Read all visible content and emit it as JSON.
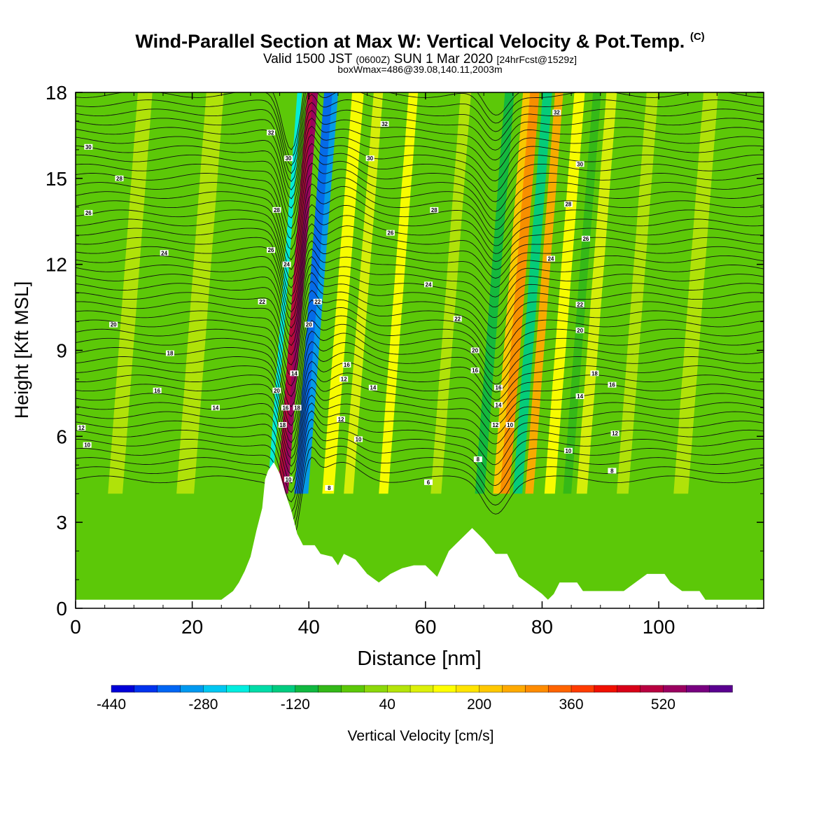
{
  "header": {
    "title_main": "Wind-Parallel Section at Max W: Vertical Velocity & Pot.Temp.",
    "title_copyright": "(C)",
    "subtitle_a": "Valid 1500 JST",
    "subtitle_z": "(0600Z)",
    "subtitle_b": "SUN 1 Mar 2020",
    "subtitle_fcst": "[24hrFcst@1529z]",
    "info_line": "boxWmax=486@39.08,140.11,2003m"
  },
  "chart_data": {
    "type": "heatmap",
    "title": "Wind-Parallel Section at Max W: Vertical Velocity & Pot.Temp.",
    "xlabel": "Distance [nm]",
    "ylabel": "Height [Kft MSL]",
    "xlim": [
      0,
      118
    ],
    "ylim": [
      0,
      18
    ],
    "x_ticks": [
      0,
      20,
      40,
      60,
      80,
      100
    ],
    "y_ticks": [
      0,
      3,
      6,
      9,
      12,
      15,
      18
    ],
    "colorbar": {
      "label": "Vertical Velocity [cm/s]",
      "tick_labels": [
        "-440",
        "-280",
        "-120",
        "40",
        "200",
        "360",
        "520"
      ],
      "colors": [
        "#0000d8",
        "#0033ee",
        "#0066f4",
        "#0099f0",
        "#00c7f2",
        "#00eee0",
        "#00dca8",
        "#00cc80",
        "#10b840",
        "#33b818",
        "#5cc808",
        "#8cd80a",
        "#b4e40a",
        "#dcf00a",
        "#ffff00",
        "#ffe400",
        "#ffc800",
        "#ffaa00",
        "#ff8c00",
        "#ff6400",
        "#ff3c00",
        "#f01000",
        "#d80018",
        "#b80040",
        "#9a0060",
        "#780080",
        "#5a0090"
      ]
    },
    "terrain_kft": [
      [
        0,
        0.3
      ],
      [
        10,
        0.3
      ],
      [
        20,
        0.3
      ],
      [
        25,
        0.3
      ],
      [
        27,
        0.6
      ],
      [
        28,
        0.9
      ],
      [
        29,
        1.3
      ],
      [
        30,
        1.8
      ],
      [
        31,
        2.7
      ],
      [
        32,
        3.5
      ],
      [
        32.5,
        4.5
      ],
      [
        33,
        4.8
      ],
      [
        34,
        5.1
      ],
      [
        35,
        4.7
      ],
      [
        36,
        4.0
      ],
      [
        37,
        3.4
      ],
      [
        38,
        2.6
      ],
      [
        39,
        2.2
      ],
      [
        41,
        2.2
      ],
      [
        42,
        1.9
      ],
      [
        44,
        1.8
      ],
      [
        45,
        1.5
      ],
      [
        46,
        1.9
      ],
      [
        48,
        1.7
      ],
      [
        50,
        1.2
      ],
      [
        52,
        0.9
      ],
      [
        54,
        1.2
      ],
      [
        56,
        1.4
      ],
      [
        58,
        1.5
      ],
      [
        60,
        1.5
      ],
      [
        61,
        1.3
      ],
      [
        62,
        1.1
      ],
      [
        64,
        2.0
      ],
      [
        66,
        2.4
      ],
      [
        68,
        2.8
      ],
      [
        70,
        2.4
      ],
      [
        72,
        1.9
      ],
      [
        74,
        1.9
      ],
      [
        75,
        1.5
      ],
      [
        76,
        1.1
      ],
      [
        78,
        0.8
      ],
      [
        80,
        0.5
      ],
      [
        81,
        0.3
      ],
      [
        82,
        0.5
      ],
      [
        83,
        0.9
      ],
      [
        86,
        0.9
      ],
      [
        87,
        0.6
      ],
      [
        94,
        0.6
      ],
      [
        96,
        0.9
      ],
      [
        98,
        1.2
      ],
      [
        101,
        1.2
      ],
      [
        102,
        0.9
      ],
      [
        104,
        0.6
      ],
      [
        107,
        0.6
      ],
      [
        108,
        0.3
      ],
      [
        118,
        0.3
      ]
    ],
    "ww_bands": [
      {
        "x": 36.5,
        "width": 1.4,
        "value": 480
      },
      {
        "x": 37.2,
        "width": 0.9,
        "value": 540
      },
      {
        "x": 39.5,
        "width": 1.6,
        "value": -360
      },
      {
        "x": 40.6,
        "width": 1.0,
        "value": -300
      },
      {
        "x": 34.5,
        "width": 0.8,
        "value": -240
      },
      {
        "x": 44.5,
        "width": 2.0,
        "value": 120
      },
      {
        "x": 48.0,
        "width": 1.6,
        "value": 80
      },
      {
        "x": 54.0,
        "width": 1.6,
        "value": 150
      },
      {
        "x": 63.0,
        "width": 1.8,
        "value": 70
      },
      {
        "x": 70.5,
        "width": 1.6,
        "value": -120
      },
      {
        "x": 73.5,
        "width": 1.4,
        "value": 200
      },
      {
        "x": 74.8,
        "width": 1.6,
        "value": 280
      },
      {
        "x": 77.0,
        "width": 1.6,
        "value": -150
      },
      {
        "x": 79.0,
        "width": 1.4,
        "value": 240
      },
      {
        "x": 82.5,
        "width": 1.8,
        "value": 120
      },
      {
        "x": 85.5,
        "width": 1.4,
        "value": -80
      },
      {
        "x": 88.0,
        "width": 1.8,
        "value": 90
      },
      {
        "x": 95.0,
        "width": 2.0,
        "value": 60
      },
      {
        "x": 105.0,
        "width": 2.5,
        "value": 60
      },
      {
        "x": 20.0,
        "width": 3.0,
        "value": 50
      },
      {
        "x": 8.0,
        "width": 2.5,
        "value": 45
      }
    ],
    "contour_labels": [
      {
        "x": 2.2,
        "y": 16.1,
        "text": "30"
      },
      {
        "x": 7.5,
        "y": 15.0,
        "text": "28"
      },
      {
        "x": 2.2,
        "y": 13.8,
        "text": "26"
      },
      {
        "x": 15.2,
        "y": 12.4,
        "text": "24"
      },
      {
        "x": 6.5,
        "y": 9.9,
        "text": "20"
      },
      {
        "x": 16.2,
        "y": 8.9,
        "text": "18"
      },
      {
        "x": 14.0,
        "y": 7.6,
        "text": "16"
      },
      {
        "x": 24.0,
        "y": 7.0,
        "text": "14"
      },
      {
        "x": 1.0,
        "y": 6.3,
        "text": "12"
      },
      {
        "x": 2.0,
        "y": 5.7,
        "text": "10"
      },
      {
        "x": 33.5,
        "y": 16.6,
        "text": "32"
      },
      {
        "x": 36.5,
        "y": 15.7,
        "text": "30"
      },
      {
        "x": 34.5,
        "y": 13.9,
        "text": "28"
      },
      {
        "x": 33.5,
        "y": 12.5,
        "text": "26"
      },
      {
        "x": 36.2,
        "y": 12.0,
        "text": "24"
      },
      {
        "x": 32.0,
        "y": 10.7,
        "text": "22"
      },
      {
        "x": 41.5,
        "y": 10.7,
        "text": "22"
      },
      {
        "x": 40.0,
        "y": 9.9,
        "text": "20"
      },
      {
        "x": 37.5,
        "y": 8.2,
        "text": "14"
      },
      {
        "x": 34.5,
        "y": 7.6,
        "text": "20"
      },
      {
        "x": 36.0,
        "y": 7.0,
        "text": "16"
      },
      {
        "x": 38.0,
        "y": 7.0,
        "text": "18"
      },
      {
        "x": 35.5,
        "y": 6.4,
        "text": "18"
      },
      {
        "x": 36.5,
        "y": 4.5,
        "text": "10"
      },
      {
        "x": 53.0,
        "y": 16.9,
        "text": "32"
      },
      {
        "x": 50.5,
        "y": 15.7,
        "text": "30"
      },
      {
        "x": 61.5,
        "y": 13.9,
        "text": "28"
      },
      {
        "x": 54.0,
        "y": 13.1,
        "text": "26"
      },
      {
        "x": 60.5,
        "y": 11.3,
        "text": "24"
      },
      {
        "x": 65.5,
        "y": 10.1,
        "text": "22"
      },
      {
        "x": 46.5,
        "y": 8.5,
        "text": "16"
      },
      {
        "x": 46.0,
        "y": 8.0,
        "text": "12"
      },
      {
        "x": 51.0,
        "y": 7.7,
        "text": "14"
      },
      {
        "x": 45.5,
        "y": 6.6,
        "text": "12"
      },
      {
        "x": 48.5,
        "y": 5.9,
        "text": "10"
      },
      {
        "x": 43.5,
        "y": 4.2,
        "text": "8"
      },
      {
        "x": 60.5,
        "y": 4.4,
        "text": "6"
      },
      {
        "x": 82.5,
        "y": 17.3,
        "text": "32"
      },
      {
        "x": 86.5,
        "y": 15.5,
        "text": "30"
      },
      {
        "x": 84.5,
        "y": 14.1,
        "text": "28"
      },
      {
        "x": 87.5,
        "y": 12.9,
        "text": "26"
      },
      {
        "x": 81.5,
        "y": 12.2,
        "text": "24"
      },
      {
        "x": 86.5,
        "y": 10.6,
        "text": "22"
      },
      {
        "x": 86.5,
        "y": 9.7,
        "text": "20"
      },
      {
        "x": 68.5,
        "y": 9.0,
        "text": "20"
      },
      {
        "x": 68.5,
        "y": 8.3,
        "text": "16"
      },
      {
        "x": 72.5,
        "y": 7.7,
        "text": "16"
      },
      {
        "x": 89.0,
        "y": 8.2,
        "text": "18"
      },
      {
        "x": 92.0,
        "y": 7.8,
        "text": "16"
      },
      {
        "x": 86.5,
        "y": 7.4,
        "text": "14"
      },
      {
        "x": 72.5,
        "y": 7.1,
        "text": "14"
      },
      {
        "x": 72.0,
        "y": 6.4,
        "text": "12"
      },
      {
        "x": 74.5,
        "y": 6.4,
        "text": "10"
      },
      {
        "x": 92.5,
        "y": 6.1,
        "text": "12"
      },
      {
        "x": 84.5,
        "y": 5.5,
        "text": "10"
      },
      {
        "x": 69.0,
        "y": 5.2,
        "text": "8"
      },
      {
        "x": 92.0,
        "y": 4.8,
        "text": "8"
      }
    ]
  }
}
